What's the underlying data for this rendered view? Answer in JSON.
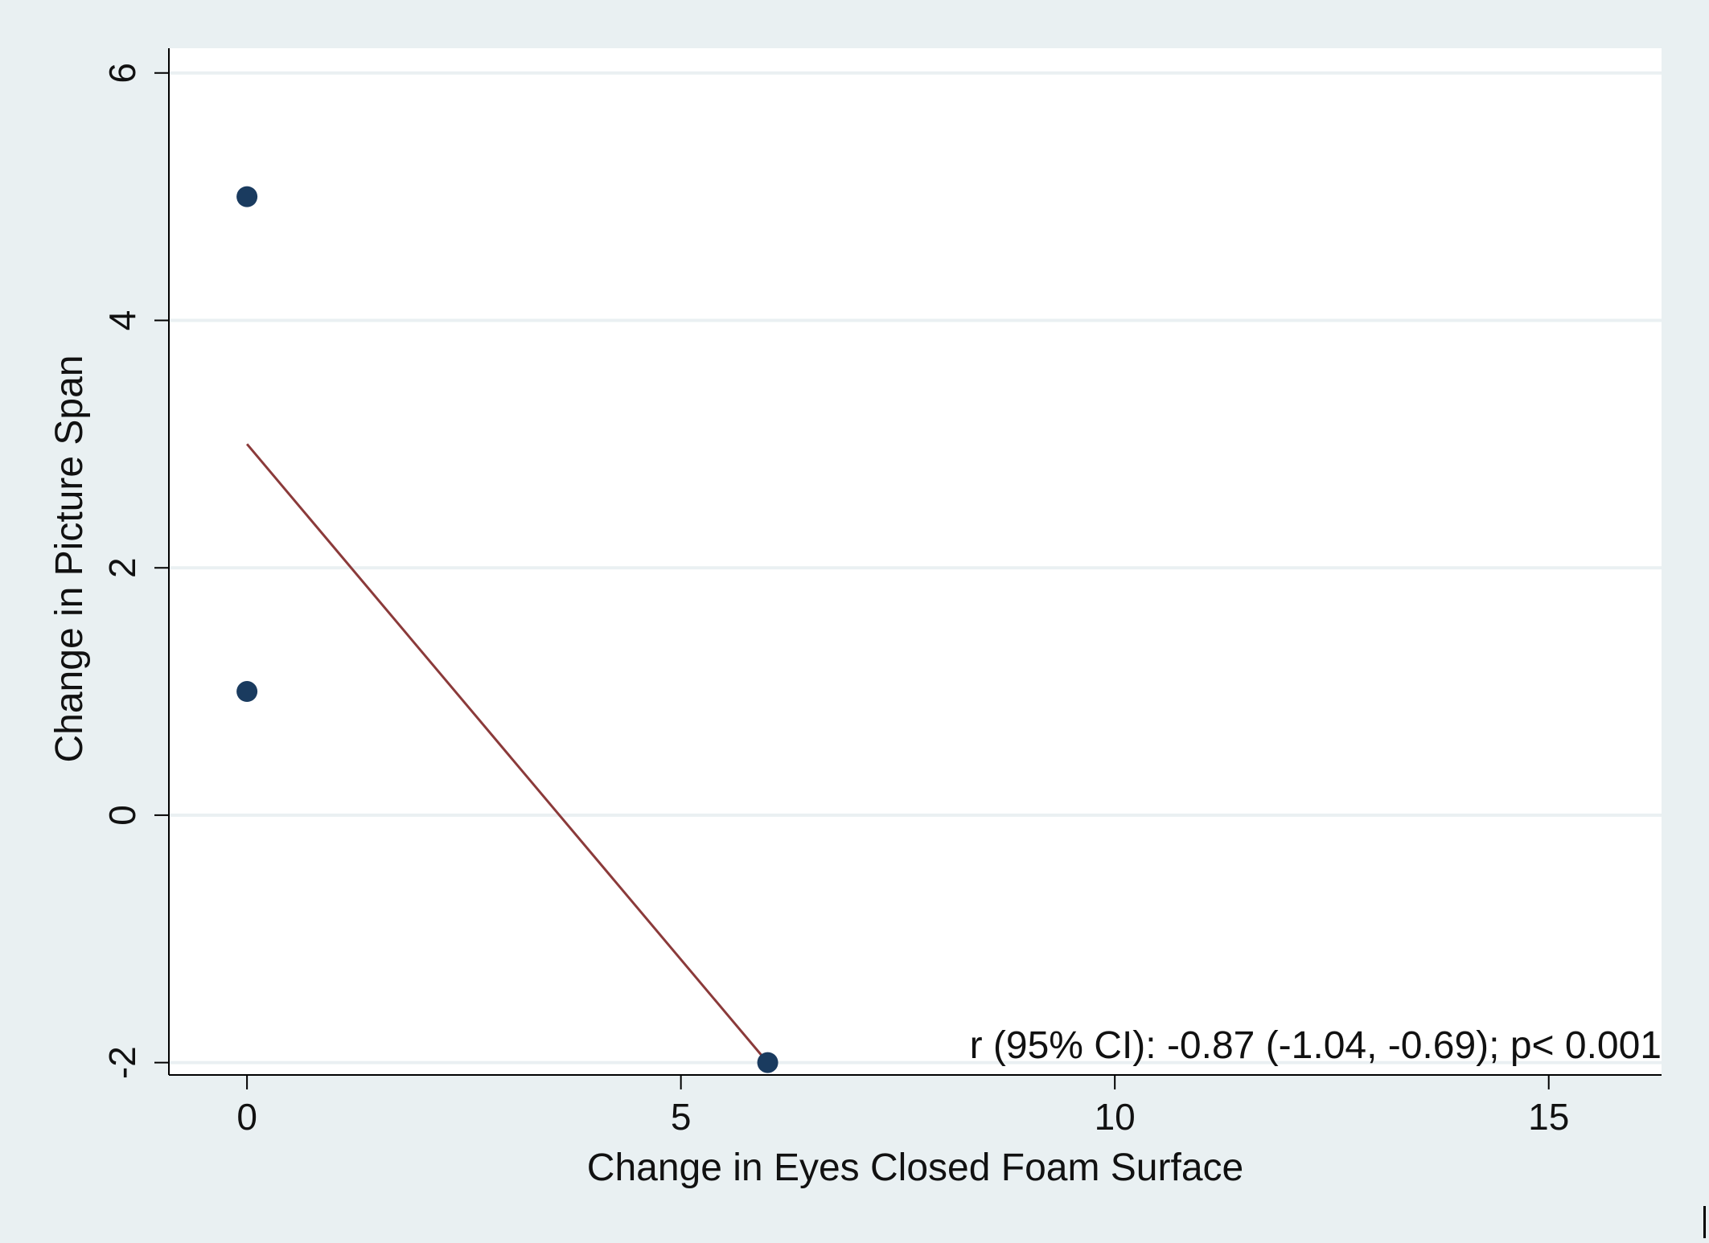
{
  "chart_data": {
    "type": "scatter",
    "title": "",
    "xlabel": "Change in Eyes Closed Foam Surface",
    "ylabel": "Change in Picture Span",
    "xlim": [
      -0.9,
      16.3
    ],
    "ylim": [
      -2.1,
      6.2
    ],
    "xticks": [
      0,
      5,
      10,
      15
    ],
    "yticks": [
      -2,
      0,
      2,
      4,
      6
    ],
    "xtick_labels": [
      "0",
      "5",
      "10",
      "15"
    ],
    "ytick_labels": [
      "-2",
      "0",
      "2",
      "4",
      "6"
    ],
    "grid": "horizontal",
    "points": [
      {
        "x": 0,
        "y": 5
      },
      {
        "x": 0,
        "y": 1
      },
      {
        "x": 6,
        "y": -2
      }
    ],
    "fit_line": {
      "x": [
        0,
        6
      ],
      "y": [
        3,
        -2
      ]
    },
    "annotation": "r (95% CI): -0.87 (-1.04, -0.69); p< 0.001",
    "colors": {
      "background": "#e9f0f2",
      "plot_area": "#ffffff",
      "grid": "#eaf0f2",
      "point": "#1a3b5f",
      "fit_line": "#8b3a3a",
      "axis": "#000000"
    }
  }
}
